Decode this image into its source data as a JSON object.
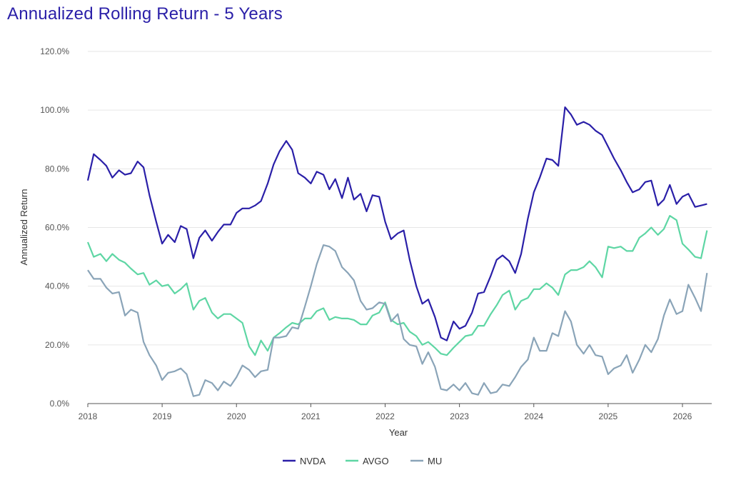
{
  "chart_data": {
    "type": "line",
    "title": "Annualized Rolling Return - 5 Years",
    "xlabel": "Year",
    "ylabel": "Annualized Return",
    "xlim": [
      2018,
      2026.4
    ],
    "ylim": [
      0,
      120
    ],
    "y_ticks": [
      "0.0%",
      "20.0%",
      "40.0%",
      "60.0%",
      "80.0%",
      "100.0%",
      "120.0%"
    ],
    "x_ticks": [
      "2018",
      "2019",
      "2020",
      "2021",
      "2022",
      "2023",
      "2024",
      "2025",
      "2026"
    ],
    "grid": true,
    "legend_position": "bottom-center",
    "series": [
      {
        "name": "NVDA",
        "color": "#2a1fa8",
        "points": [
          [
            2018.0,
            76
          ],
          [
            2018.08,
            85
          ],
          [
            2018.17,
            83
          ],
          [
            2018.25,
            81
          ],
          [
            2018.33,
            77
          ],
          [
            2018.42,
            79.5
          ],
          [
            2018.5,
            78
          ],
          [
            2018.58,
            78.5
          ],
          [
            2018.67,
            82.5
          ],
          [
            2018.75,
            80.5
          ],
          [
            2018.83,
            71
          ],
          [
            2018.92,
            62
          ],
          [
            2019.0,
            54.5
          ],
          [
            2019.08,
            57.5
          ],
          [
            2019.17,
            55
          ],
          [
            2019.25,
            60.5
          ],
          [
            2019.33,
            59.5
          ],
          [
            2019.42,
            49.5
          ],
          [
            2019.5,
            56.5
          ],
          [
            2019.58,
            59
          ],
          [
            2019.67,
            55.5
          ],
          [
            2019.75,
            58.5
          ],
          [
            2019.83,
            61
          ],
          [
            2019.92,
            61
          ],
          [
            2020.0,
            65
          ],
          [
            2020.08,
            66.5
          ],
          [
            2020.17,
            66.5
          ],
          [
            2020.25,
            67.5
          ],
          [
            2020.33,
            69
          ],
          [
            2020.42,
            75
          ],
          [
            2020.5,
            81.5
          ],
          [
            2020.58,
            86
          ],
          [
            2020.67,
            89.5
          ],
          [
            2020.75,
            86.5
          ],
          [
            2020.83,
            78.5
          ],
          [
            2020.92,
            77
          ],
          [
            2021.0,
            75
          ],
          [
            2021.08,
            79
          ],
          [
            2021.17,
            78
          ],
          [
            2021.25,
            73
          ],
          [
            2021.33,
            76.5
          ],
          [
            2021.42,
            70
          ],
          [
            2021.5,
            77
          ],
          [
            2021.58,
            69.5
          ],
          [
            2021.67,
            71.5
          ],
          [
            2021.75,
            65.5
          ],
          [
            2021.83,
            71
          ],
          [
            2021.92,
            70.5
          ],
          [
            2022.0,
            62
          ],
          [
            2022.08,
            56
          ],
          [
            2022.17,
            58
          ],
          [
            2022.25,
            59
          ],
          [
            2022.33,
            49
          ],
          [
            2022.42,
            40
          ],
          [
            2022.5,
            34
          ],
          [
            2022.58,
            35.5
          ],
          [
            2022.67,
            29.5
          ],
          [
            2022.75,
            22.5
          ],
          [
            2022.83,
            21.5
          ],
          [
            2022.92,
            28
          ],
          [
            2023.0,
            25.5
          ],
          [
            2023.08,
            26.5
          ],
          [
            2023.17,
            31
          ],
          [
            2023.25,
            37.5
          ],
          [
            2023.33,
            38
          ],
          [
            2023.42,
            43.5
          ],
          [
            2023.5,
            49
          ],
          [
            2023.58,
            50.5
          ],
          [
            2023.67,
            48.5
          ],
          [
            2023.75,
            44.5
          ],
          [
            2023.83,
            51
          ],
          [
            2023.92,
            63
          ],
          [
            2024.0,
            72
          ],
          [
            2024.08,
            77
          ],
          [
            2024.17,
            83.5
          ],
          [
            2024.25,
            83
          ],
          [
            2024.33,
            81
          ],
          [
            2024.42,
            101
          ],
          [
            2024.5,
            98.5
          ],
          [
            2024.58,
            95
          ],
          [
            2024.67,
            96
          ],
          [
            2024.75,
            95
          ],
          [
            2024.83,
            93
          ],
          [
            2024.92,
            91.5
          ],
          [
            2025.0,
            87.5
          ],
          [
            2025.08,
            83.5
          ],
          [
            2025.17,
            79.5
          ],
          [
            2025.25,
            75.5
          ],
          [
            2025.33,
            72
          ],
          [
            2025.42,
            73
          ],
          [
            2025.5,
            75.5
          ],
          [
            2025.58,
            76
          ],
          [
            2025.67,
            67.5
          ],
          [
            2025.75,
            69.5
          ],
          [
            2025.83,
            74.5
          ],
          [
            2025.92,
            68
          ],
          [
            2026.0,
            70.5
          ],
          [
            2026.08,
            71.5
          ],
          [
            2026.17,
            67
          ],
          [
            2026.25,
            67.5
          ],
          [
            2026.33,
            68
          ]
        ]
      },
      {
        "name": "AVGO",
        "color": "#5ed6a4",
        "points": [
          [
            2018.0,
            55
          ],
          [
            2018.08,
            50
          ],
          [
            2018.17,
            51
          ],
          [
            2018.25,
            48.5
          ],
          [
            2018.33,
            51
          ],
          [
            2018.42,
            49
          ],
          [
            2018.5,
            48
          ],
          [
            2018.58,
            46
          ],
          [
            2018.67,
            44
          ],
          [
            2018.75,
            44.5
          ],
          [
            2018.83,
            40.5
          ],
          [
            2018.92,
            42
          ],
          [
            2019.0,
            40
          ],
          [
            2019.08,
            40.5
          ],
          [
            2019.17,
            37.5
          ],
          [
            2019.25,
            39
          ],
          [
            2019.33,
            41
          ],
          [
            2019.42,
            32
          ],
          [
            2019.5,
            35
          ],
          [
            2019.58,
            36
          ],
          [
            2019.67,
            31
          ],
          [
            2019.75,
            29
          ],
          [
            2019.83,
            30.5
          ],
          [
            2019.92,
            30.5
          ],
          [
            2020.0,
            29
          ],
          [
            2020.08,
            27.5
          ],
          [
            2020.17,
            19.5
          ],
          [
            2020.25,
            16.5
          ],
          [
            2020.33,
            21.5
          ],
          [
            2020.42,
            18
          ],
          [
            2020.5,
            22.5
          ],
          [
            2020.58,
            24
          ],
          [
            2020.67,
            26
          ],
          [
            2020.75,
            27.5
          ],
          [
            2020.83,
            27
          ],
          [
            2020.92,
            29
          ],
          [
            2021.0,
            29
          ],
          [
            2021.08,
            31.5
          ],
          [
            2021.17,
            32.5
          ],
          [
            2021.25,
            28.5
          ],
          [
            2021.33,
            29.5
          ],
          [
            2021.42,
            29
          ],
          [
            2021.5,
            29
          ],
          [
            2021.58,
            28.5
          ],
          [
            2021.67,
            27
          ],
          [
            2021.75,
            27
          ],
          [
            2021.83,
            30
          ],
          [
            2021.92,
            31
          ],
          [
            2022.0,
            34.5
          ],
          [
            2022.08,
            28.5
          ],
          [
            2022.17,
            27
          ],
          [
            2022.25,
            27.5
          ],
          [
            2022.33,
            24.5
          ],
          [
            2022.42,
            23
          ],
          [
            2022.5,
            20
          ],
          [
            2022.58,
            21
          ],
          [
            2022.67,
            19
          ],
          [
            2022.75,
            17
          ],
          [
            2022.83,
            16.5
          ],
          [
            2022.92,
            19
          ],
          [
            2023.0,
            21
          ],
          [
            2023.08,
            23
          ],
          [
            2023.17,
            23.5
          ],
          [
            2023.25,
            26.5
          ],
          [
            2023.33,
            26.5
          ],
          [
            2023.42,
            30.5
          ],
          [
            2023.5,
            33.5
          ],
          [
            2023.58,
            37
          ],
          [
            2023.67,
            38.5
          ],
          [
            2023.75,
            32
          ],
          [
            2023.83,
            35
          ],
          [
            2023.92,
            36
          ],
          [
            2024.0,
            39
          ],
          [
            2024.08,
            39
          ],
          [
            2024.17,
            41
          ],
          [
            2024.25,
            39.5
          ],
          [
            2024.33,
            37
          ],
          [
            2024.42,
            44
          ],
          [
            2024.5,
            45.5
          ],
          [
            2024.58,
            45.5
          ],
          [
            2024.67,
            46.5
          ],
          [
            2024.75,
            48.5
          ],
          [
            2024.83,
            46.5
          ],
          [
            2024.92,
            43
          ],
          [
            2025.0,
            53.5
          ],
          [
            2025.08,
            53
          ],
          [
            2025.17,
            53.5
          ],
          [
            2025.25,
            52
          ],
          [
            2025.33,
            52
          ],
          [
            2025.42,
            56.5
          ],
          [
            2025.5,
            58
          ],
          [
            2025.58,
            60
          ],
          [
            2025.67,
            57.5
          ],
          [
            2025.75,
            59.5
          ],
          [
            2025.83,
            64
          ],
          [
            2025.92,
            62.5
          ],
          [
            2026.0,
            54.5
          ],
          [
            2026.08,
            52.5
          ],
          [
            2026.17,
            50
          ],
          [
            2026.25,
            49.5
          ],
          [
            2026.33,
            59
          ]
        ]
      },
      {
        "name": "MU",
        "color": "#8aa4b8",
        "points": [
          [
            2018.0,
            45.5
          ],
          [
            2018.08,
            42.5
          ],
          [
            2018.17,
            42.5
          ],
          [
            2018.25,
            39.5
          ],
          [
            2018.33,
            37.5
          ],
          [
            2018.42,
            38
          ],
          [
            2018.5,
            30
          ],
          [
            2018.58,
            32
          ],
          [
            2018.67,
            31
          ],
          [
            2018.75,
            21
          ],
          [
            2018.83,
            16.5
          ],
          [
            2018.92,
            13
          ],
          [
            2019.0,
            8
          ],
          [
            2019.08,
            10.5
          ],
          [
            2019.17,
            11
          ],
          [
            2019.25,
            12
          ],
          [
            2019.33,
            10
          ],
          [
            2019.42,
            2.5
          ],
          [
            2019.5,
            3
          ],
          [
            2019.58,
            8
          ],
          [
            2019.67,
            7
          ],
          [
            2019.75,
            4.5
          ],
          [
            2019.83,
            7.5
          ],
          [
            2019.92,
            6
          ],
          [
            2020.0,
            9
          ],
          [
            2020.08,
            13
          ],
          [
            2020.17,
            11.5
          ],
          [
            2020.25,
            9
          ],
          [
            2020.33,
            11
          ],
          [
            2020.42,
            11.5
          ],
          [
            2020.5,
            22.5
          ],
          [
            2020.58,
            22.5
          ],
          [
            2020.67,
            23
          ],
          [
            2020.75,
            26
          ],
          [
            2020.83,
            25.5
          ],
          [
            2020.92,
            33
          ],
          [
            2021.0,
            40
          ],
          [
            2021.08,
            47.5
          ],
          [
            2021.17,
            54
          ],
          [
            2021.25,
            53.5
          ],
          [
            2021.33,
            52
          ],
          [
            2021.42,
            46.5
          ],
          [
            2021.5,
            44.5
          ],
          [
            2021.58,
            42
          ],
          [
            2021.67,
            35
          ],
          [
            2021.75,
            32
          ],
          [
            2021.83,
            32.5
          ],
          [
            2021.92,
            34.5
          ],
          [
            2022.0,
            34
          ],
          [
            2022.08,
            28
          ],
          [
            2022.17,
            30.5
          ],
          [
            2022.25,
            22
          ],
          [
            2022.33,
            20
          ],
          [
            2022.42,
            19.5
          ],
          [
            2022.5,
            13.5
          ],
          [
            2022.58,
            17.5
          ],
          [
            2022.67,
            12.5
          ],
          [
            2022.75,
            5
          ],
          [
            2022.83,
            4.5
          ],
          [
            2022.92,
            6.5
          ],
          [
            2023.0,
            4.5
          ],
          [
            2023.08,
            7
          ],
          [
            2023.17,
            3.5
          ],
          [
            2023.25,
            3
          ],
          [
            2023.33,
            7
          ],
          [
            2023.42,
            3.5
          ],
          [
            2023.5,
            4
          ],
          [
            2023.58,
            6.5
          ],
          [
            2023.67,
            6
          ],
          [
            2023.75,
            9
          ],
          [
            2023.83,
            12.5
          ],
          [
            2023.92,
            15
          ],
          [
            2024.0,
            22.5
          ],
          [
            2024.08,
            18
          ],
          [
            2024.17,
            18
          ],
          [
            2024.25,
            24
          ],
          [
            2024.33,
            23
          ],
          [
            2024.42,
            31.5
          ],
          [
            2024.5,
            28
          ],
          [
            2024.58,
            20
          ],
          [
            2024.67,
            17
          ],
          [
            2024.75,
            20
          ],
          [
            2024.83,
            16.5
          ],
          [
            2024.92,
            16
          ],
          [
            2025.0,
            10
          ],
          [
            2025.08,
            12
          ],
          [
            2025.17,
            13
          ],
          [
            2025.25,
            16.5
          ],
          [
            2025.33,
            10.5
          ],
          [
            2025.42,
            15
          ],
          [
            2025.5,
            20
          ],
          [
            2025.58,
            17.5
          ],
          [
            2025.67,
            22
          ],
          [
            2025.75,
            30
          ],
          [
            2025.83,
            35.5
          ],
          [
            2025.92,
            30.5
          ],
          [
            2026.0,
            31.5
          ],
          [
            2026.08,
            40.5
          ],
          [
            2026.17,
            36
          ],
          [
            2026.25,
            31.5
          ],
          [
            2026.33,
            44.5
          ]
        ]
      }
    ]
  }
}
